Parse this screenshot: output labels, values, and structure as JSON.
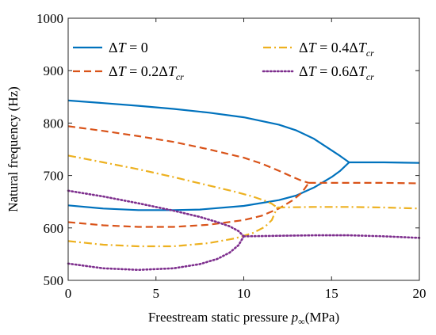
{
  "chart_data": {
    "type": "line",
    "xlabel": "Freestream static pressure p∞(MPa)",
    "xlabel_parts": {
      "main": "Freestream static pressure ",
      "var": "p",
      "sub": "∞",
      "unit": "(MPa)"
    },
    "ylabel": "Natural frequency (Hz)",
    "xlim": [
      0,
      20
    ],
    "ylim": [
      500,
      1000
    ],
    "xticks": [
      "0",
      "5",
      "10",
      "15",
      "20"
    ],
    "yticks": [
      "500",
      "600",
      "700",
      "800",
      "900",
      "1000"
    ],
    "grid": false,
    "legend_position": "top",
    "series": [
      {
        "name": "ΔT = 0",
        "name_parts": {
          "lhs": "Δ",
          "var": "T",
          "rhs": " = 0",
          "sub": ""
        },
        "color": "#0072BD",
        "dash": "solid",
        "upper": [
          [
            0,
            843
          ],
          [
            2,
            838
          ],
          [
            4,
            833
          ],
          [
            6,
            827
          ],
          [
            8,
            820
          ],
          [
            10,
            811
          ],
          [
            12,
            797
          ],
          [
            13,
            786
          ],
          [
            14,
            770
          ],
          [
            15,
            748
          ],
          [
            15.5,
            737
          ],
          [
            16,
            725
          ]
        ],
        "lower": [
          [
            0,
            643
          ],
          [
            2,
            637
          ],
          [
            4,
            634
          ],
          [
            6,
            634
          ],
          [
            7.5,
            635
          ],
          [
            10,
            642
          ],
          [
            12,
            653
          ],
          [
            13,
            662
          ],
          [
            14,
            677
          ],
          [
            15,
            697
          ],
          [
            15.5,
            709
          ],
          [
            16,
            725
          ]
        ],
        "merged": [
          [
            16,
            725
          ],
          [
            18,
            725
          ],
          [
            20,
            724
          ]
        ]
      },
      {
        "name": "ΔT = 0.2ΔTcr",
        "name_parts": {
          "lhs": "Δ",
          "var": "T",
          "rhs": " = 0.2Δ",
          "sub": "cr"
        },
        "color": "#D95319",
        "dash": "dash",
        "upper": [
          [
            0,
            794
          ],
          [
            2,
            785
          ],
          [
            4,
            775
          ],
          [
            6,
            764
          ],
          [
            8,
            750
          ],
          [
            10,
            734
          ],
          [
            11,
            723
          ],
          [
            12,
            709
          ],
          [
            12.8,
            697
          ],
          [
            13.3,
            690
          ],
          [
            13.7,
            686
          ]
        ],
        "lower": [
          [
            0,
            611
          ],
          [
            2,
            605
          ],
          [
            4,
            602
          ],
          [
            6,
            602
          ],
          [
            8,
            606
          ],
          [
            10,
            615
          ],
          [
            11,
            623
          ],
          [
            12,
            637
          ],
          [
            12.8,
            653
          ],
          [
            13.3,
            667
          ],
          [
            13.7,
            686
          ]
        ],
        "merged": [
          [
            13.7,
            686
          ],
          [
            16,
            686
          ],
          [
            18,
            686
          ],
          [
            20,
            685
          ]
        ]
      },
      {
        "name": "ΔT = 0.4ΔTcr",
        "name_parts": {
          "lhs": "Δ",
          "var": "T",
          "rhs": " = 0.4Δ",
          "sub": "cr"
        },
        "color": "#EDB120",
        "dash": "dashdot",
        "upper": [
          [
            0,
            738
          ],
          [
            2,
            725
          ],
          [
            4,
            712
          ],
          [
            6,
            697
          ],
          [
            8,
            681
          ],
          [
            9.5,
            669
          ],
          [
            10.5,
            660
          ],
          [
            11.2,
            652
          ],
          [
            11.6,
            646
          ],
          [
            11.9,
            639
          ]
        ],
        "lower": [
          [
            0,
            575
          ],
          [
            2,
            568
          ],
          [
            4,
            565
          ],
          [
            6,
            565
          ],
          [
            8,
            571
          ],
          [
            9.5,
            580
          ],
          [
            10.5,
            590
          ],
          [
            11.2,
            602
          ],
          [
            11.6,
            615
          ],
          [
            11.9,
            639
          ]
        ],
        "merged": [
          [
            11.9,
            639
          ],
          [
            14,
            640
          ],
          [
            16,
            640
          ],
          [
            18,
            639
          ],
          [
            20,
            637
          ]
        ]
      },
      {
        "name": "ΔT = 0.6ΔTcr",
        "name_parts": {
          "lhs": "Δ",
          "var": "T",
          "rhs": " = 0.6Δ",
          "sub": "cr"
        },
        "color": "#7E2F8E",
        "dash": "dotted",
        "upper": [
          [
            0,
            671
          ],
          [
            2,
            660
          ],
          [
            4,
            647
          ],
          [
            6,
            633
          ],
          [
            7.5,
            621
          ],
          [
            8.5,
            611
          ],
          [
            9.2,
            603
          ],
          [
            9.7,
            594
          ],
          [
            10,
            584
          ]
        ],
        "lower": [
          [
            0,
            532
          ],
          [
            2,
            523
          ],
          [
            4,
            520
          ],
          [
            6,
            523
          ],
          [
            7.5,
            531
          ],
          [
            8.5,
            541
          ],
          [
            9.2,
            553
          ],
          [
            9.7,
            567
          ],
          [
            10,
            584
          ]
        ],
        "merged": [
          [
            10,
            584
          ],
          [
            12,
            585
          ],
          [
            14,
            586
          ],
          [
            16,
            586
          ],
          [
            18,
            584
          ],
          [
            20,
            581
          ]
        ]
      }
    ]
  }
}
